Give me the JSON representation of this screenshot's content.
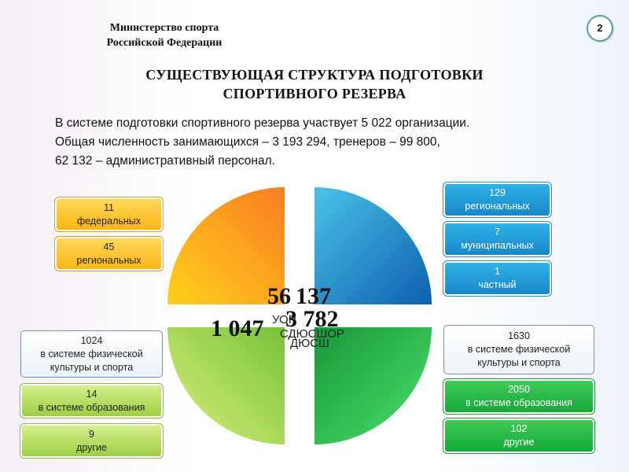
{
  "header": {
    "org_line1": "Министерство спорта",
    "org_line2": "Российской Федерации",
    "page_number": "2"
  },
  "title": {
    "line1": "СУЩЕСТВУЮЩАЯ СТРУКТУРА ПОДГОТОВКИ",
    "line2": "СПОРТИВНОГО РЕЗЕРВА"
  },
  "intro": {
    "line1": "В  системе подготовки спортивного резерва участвует 5 022 организации.",
    "line2": "Общая численность занимающихся – 3 193 294, тренеров – 99 800,",
    "line3": "62 132 – административный персонал."
  },
  "colors": {
    "orange": "#fba51d",
    "blue": "#1a86c6",
    "light_green": "#9fcf45",
    "green": "#17a83a"
  },
  "pie": {
    "top_left": {
      "value": "56"
    },
    "top_right": {
      "value": "137",
      "label": "УОР"
    },
    "bottom_left": {
      "value": "1 047",
      "label": "СДЮСШОР"
    },
    "bottom_right": {
      "value": "3 782",
      "label": "ДЮСШ"
    }
  },
  "boxes": {
    "left_top": [
      {
        "number": "11",
        "text": "федеральных"
      },
      {
        "number": "45",
        "text": "региональных"
      }
    ],
    "right_top": [
      {
        "number": "129",
        "text": "региональных"
      },
      {
        "number": "7",
        "text": "муниципальных"
      },
      {
        "number": "1",
        "text": "частный"
      }
    ],
    "left_bottom": [
      {
        "number": "1024",
        "line1": "в системе физической",
        "line2": "культуры и спорта"
      },
      {
        "number": "14",
        "text": "в системе образования"
      },
      {
        "number": "9",
        "text": "другие"
      }
    ],
    "right_bottom": [
      {
        "number": "1630",
        "line1": "в системе физической",
        "line2": "культуры и спорта"
      },
      {
        "number": "2050",
        "text": "в системе образования"
      },
      {
        "number": "102",
        "text": "другие"
      }
    ]
  }
}
